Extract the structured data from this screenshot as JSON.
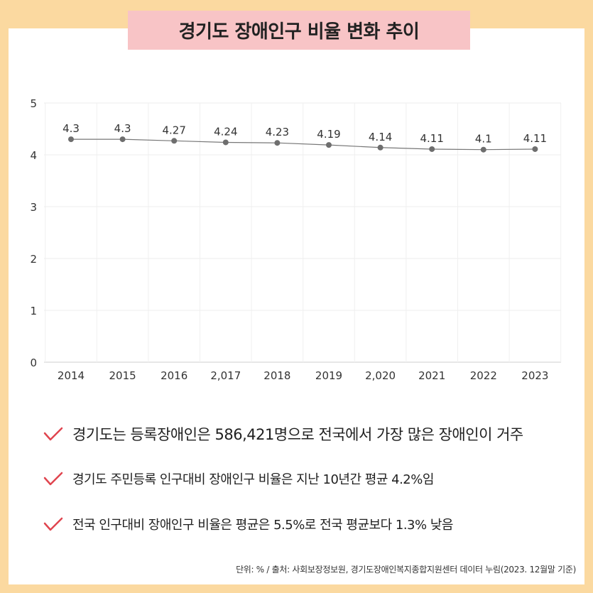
{
  "title": "경기도 장애인구 비율 변화 추이",
  "chart_data": {
    "type": "line",
    "categories": [
      "2014",
      "2015",
      "2016",
      "2,017",
      "2018",
      "2019",
      "2,020",
      "2021",
      "2022",
      "2023"
    ],
    "values": [
      4.3,
      4.3,
      4.27,
      4.24,
      4.23,
      4.19,
      4.14,
      4.11,
      4.1,
      4.11
    ],
    "value_labels": [
      "4.3",
      "4.3",
      "4.27",
      "4.24",
      "4.23",
      "4.19",
      "4.14",
      "4.11",
      "4.1",
      "4.11"
    ],
    "ylim": [
      0,
      5
    ],
    "yticks": [
      "0",
      "1",
      "2",
      "3",
      "4",
      "5"
    ],
    "grid": true,
    "line_color": "#777777",
    "marker_color": "#6e6e6e"
  },
  "bullets": [
    "경기도는 등록장애인은 586,421명으로 전국에서 가장 많은 장애인이 거주",
    "경기도 주민등록 인구대비 장애인구 비율은 지난 10년간 평균 4.2%임",
    "전국 인구대비 장애인구 비율은 평균은 5.5%로 전국 평균보다 1.3% 낮음"
  ],
  "source": "단위: % / 출처: 사회보장정보원, 경기도장애인복지종합지원센터 데이터 누림(2023. 12월말 기준)",
  "colors": {
    "background": "#fbd9a0",
    "title_bg": "#f8c4c6",
    "check": "#e0454f"
  }
}
